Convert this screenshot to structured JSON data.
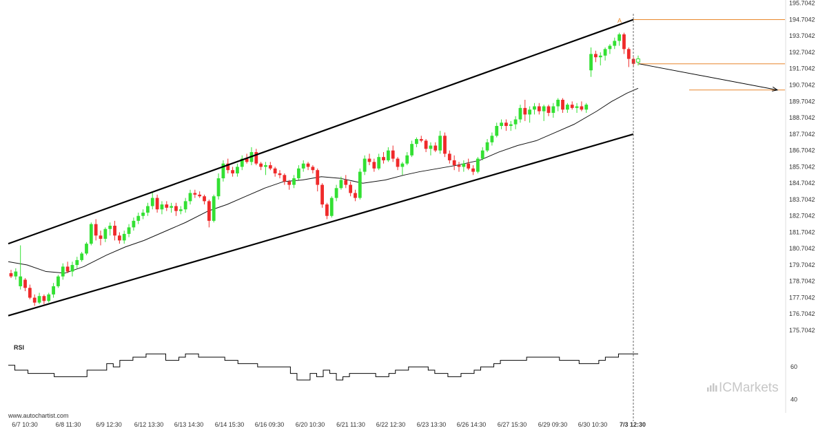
{
  "chart_data": {
    "type": "candlestick",
    "price_axis": {
      "ylim": [
        175.2,
        195.9
      ],
      "ticks": [
        "195.7042",
        "194.7042",
        "193.7042",
        "192.7042",
        "191.7042",
        "190.7042",
        "189.7042",
        "188.7042",
        "187.7042",
        "186.7042",
        "185.7042",
        "184.7042",
        "183.7042",
        "182.7042",
        "181.7042",
        "180.7042",
        "179.7042",
        "178.7042",
        "177.7042",
        "176.7042",
        "175.7042"
      ]
    },
    "x_ticks": [
      "6/7 10:30",
      "6/8 11:30",
      "6/9 12:30",
      "6/12 13:30",
      "6/13 14:30",
      "6/14 15:30",
      "6/16 09:30",
      "6/20 10:30",
      "6/21 11:30",
      "6/22 12:30",
      "6/23 13:30",
      "6/26 14:30",
      "6/27 15:30",
      "6/29 09:30",
      "6/30 10:30",
      "7/3 12:30"
    ],
    "x_tick_bold_last": true,
    "candles": [
      [
        179.2,
        179.4,
        178.9,
        179.0
      ],
      [
        179.0,
        179.5,
        178.8,
        179.3
      ],
      [
        178.4,
        180.9,
        178.2,
        179.0
      ],
      [
        178.8,
        178.9,
        178.1,
        178.3
      ],
      [
        178.3,
        178.5,
        177.6,
        177.7
      ],
      [
        177.7,
        177.9,
        177.2,
        177.4
      ],
      [
        177.4,
        178.0,
        177.3,
        177.8
      ],
      [
        177.8,
        177.9,
        177.3,
        177.5
      ],
      [
        177.5,
        178.0,
        177.4,
        177.9
      ],
      [
        177.9,
        178.6,
        177.7,
        178.4
      ],
      [
        178.4,
        179.1,
        178.3,
        179.0
      ],
      [
        179.0,
        179.8,
        178.8,
        179.6
      ],
      [
        179.6,
        179.9,
        179.2,
        179.3
      ],
      [
        179.3,
        179.9,
        179.0,
        179.7
      ],
      [
        179.7,
        180.2,
        179.5,
        180.0
      ],
      [
        180.0,
        180.5,
        179.9,
        180.4
      ],
      [
        180.4,
        181.1,
        180.3,
        181.0
      ],
      [
        181.0,
        182.3,
        180.9,
        182.2
      ],
      [
        182.2,
        182.5,
        181.2,
        181.5
      ],
      [
        181.5,
        181.8,
        180.9,
        181.3
      ],
      [
        181.3,
        182.0,
        181.1,
        181.9
      ],
      [
        181.9,
        182.3,
        181.5,
        182.1
      ],
      [
        182.1,
        182.4,
        181.2,
        181.5
      ],
      [
        181.5,
        181.7,
        181.0,
        181.2
      ],
      [
        181.2,
        181.8,
        181.0,
        181.6
      ],
      [
        181.6,
        182.2,
        181.4,
        182.0
      ],
      [
        182.0,
        182.6,
        181.8,
        182.4
      ],
      [
        182.4,
        182.9,
        182.2,
        182.7
      ],
      [
        182.7,
        183.1,
        182.5,
        182.9
      ],
      [
        182.9,
        183.5,
        182.7,
        183.3
      ],
      [
        183.3,
        184.2,
        183.1,
        183.8
      ],
      [
        183.8,
        184.0,
        182.9,
        183.1
      ],
      [
        183.1,
        183.6,
        182.8,
        183.4
      ],
      [
        183.4,
        183.6,
        183.0,
        183.2
      ],
      [
        183.2,
        183.5,
        182.9,
        183.3
      ],
      [
        183.3,
        183.5,
        182.7,
        183.0
      ],
      [
        183.0,
        183.3,
        182.8,
        183.1
      ],
      [
        183.1,
        183.8,
        182.9,
        183.6
      ],
      [
        183.6,
        184.3,
        183.4,
        184.1
      ],
      [
        184.1,
        184.3,
        183.8,
        184.0
      ],
      [
        184.0,
        184.2,
        183.8,
        183.9
      ],
      [
        183.9,
        184.0,
        183.4,
        183.6
      ],
      [
        183.6,
        183.7,
        182.0,
        182.4
      ],
      [
        182.4,
        184.0,
        182.3,
        183.9
      ],
      [
        183.9,
        185.3,
        183.7,
        185.0
      ],
      [
        185.0,
        186.1,
        184.8,
        185.9
      ],
      [
        185.9,
        186.2,
        185.3,
        185.5
      ],
      [
        185.5,
        185.7,
        185.1,
        185.3
      ],
      [
        185.3,
        185.9,
        185.1,
        185.7
      ],
      [
        185.7,
        186.4,
        185.5,
        186.2
      ],
      [
        186.2,
        186.5,
        185.9,
        186.0
      ],
      [
        186.0,
        186.9,
        185.8,
        186.6
      ],
      [
        186.6,
        186.8,
        185.8,
        185.9
      ],
      [
        185.9,
        186.0,
        185.5,
        185.7
      ],
      [
        185.7,
        186.0,
        185.2,
        185.8
      ],
      [
        185.8,
        186.0,
        185.5,
        185.6
      ],
      [
        185.6,
        185.7,
        185.1,
        185.3
      ],
      [
        185.3,
        185.5,
        185.0,
        185.2
      ],
      [
        185.2,
        185.3,
        184.6,
        184.8
      ],
      [
        184.8,
        184.9,
        184.3,
        184.6
      ],
      [
        184.6,
        185.2,
        184.4,
        185.0
      ],
      [
        185.0,
        185.8,
        184.9,
        185.6
      ],
      [
        185.6,
        186.1,
        185.4,
        185.9
      ],
      [
        185.9,
        186.0,
        185.5,
        185.7
      ],
      [
        185.7,
        185.8,
        185.3,
        185.5
      ],
      [
        185.5,
        185.6,
        184.2,
        184.6
      ],
      [
        184.6,
        184.7,
        183.2,
        183.4
      ],
      [
        183.4,
        183.5,
        182.5,
        182.7
      ],
      [
        182.7,
        183.9,
        182.6,
        183.8
      ],
      [
        183.8,
        184.6,
        183.6,
        184.4
      ],
      [
        184.4,
        185.1,
        184.3,
        184.9
      ],
      [
        184.9,
        185.2,
        184.4,
        184.6
      ],
      [
        184.6,
        184.8,
        183.9,
        184.1
      ],
      [
        184.1,
        184.3,
        183.6,
        183.8
      ],
      [
        183.8,
        185.6,
        183.7,
        185.4
      ],
      [
        185.4,
        186.4,
        185.2,
        186.2
      ],
      [
        186.2,
        186.5,
        185.8,
        186.0
      ],
      [
        186.0,
        186.2,
        185.4,
        185.6
      ],
      [
        185.6,
        186.5,
        185.5,
        186.3
      ],
      [
        186.3,
        186.6,
        185.9,
        186.1
      ],
      [
        186.1,
        186.9,
        186.0,
        186.7
      ],
      [
        186.7,
        187.0,
        186.0,
        186.2
      ],
      [
        186.2,
        186.3,
        185.5,
        185.7
      ],
      [
        185.7,
        186.0,
        185.2,
        185.9
      ],
      [
        185.9,
        186.6,
        185.8,
        186.4
      ],
      [
        186.4,
        187.3,
        186.3,
        187.1
      ],
      [
        187.1,
        187.5,
        186.9,
        187.4
      ],
      [
        187.4,
        187.6,
        187.2,
        187.3
      ],
      [
        187.3,
        187.4,
        186.6,
        186.8
      ],
      [
        186.8,
        187.2,
        186.4,
        187.0
      ],
      [
        187.0,
        187.2,
        186.6,
        186.7
      ],
      [
        186.7,
        187.9,
        186.5,
        187.6
      ],
      [
        187.6,
        187.8,
        186.3,
        186.5
      ],
      [
        186.5,
        186.7,
        185.9,
        186.1
      ],
      [
        186.1,
        186.4,
        185.5,
        185.8
      ],
      [
        185.8,
        186.0,
        185.4,
        185.7
      ],
      [
        185.7,
        186.1,
        185.4,
        185.9
      ],
      [
        185.9,
        186.2,
        185.5,
        185.6
      ],
      [
        185.6,
        185.8,
        185.2,
        185.4
      ],
      [
        185.4,
        186.3,
        185.3,
        186.2
      ],
      [
        186.2,
        186.9,
        186.1,
        186.7
      ],
      [
        186.7,
        187.4,
        186.6,
        187.2
      ],
      [
        187.2,
        187.8,
        187.0,
        187.6
      ],
      [
        187.6,
        188.4,
        187.5,
        188.2
      ],
      [
        188.2,
        188.6,
        188.0,
        188.4
      ],
      [
        188.4,
        188.6,
        187.9,
        188.2
      ],
      [
        188.2,
        188.5,
        187.9,
        188.3
      ],
      [
        188.3,
        188.8,
        188.0,
        188.6
      ],
      [
        188.6,
        189.5,
        188.4,
        189.3
      ],
      [
        189.3,
        189.8,
        188.5,
        188.9
      ],
      [
        188.9,
        189.4,
        188.4,
        189.2
      ],
      [
        189.2,
        189.6,
        188.9,
        189.4
      ],
      [
        189.4,
        189.6,
        188.9,
        189.1
      ],
      [
        189.1,
        189.5,
        188.5,
        189.4
      ],
      [
        189.4,
        189.5,
        188.8,
        189.0
      ],
      [
        189.0,
        189.6,
        188.7,
        189.4
      ],
      [
        189.4,
        189.9,
        189.1,
        189.8
      ],
      [
        189.8,
        189.9,
        189.0,
        189.2
      ],
      [
        189.2,
        189.6,
        189.0,
        189.5
      ],
      [
        189.5,
        189.7,
        189.2,
        189.3
      ],
      [
        189.3,
        189.6,
        189.0,
        189.4
      ],
      [
        189.4,
        189.7,
        189.1,
        189.2
      ],
      [
        189.2,
        189.6,
        189.0,
        189.5
      ],
      [
        191.6,
        193.0,
        191.2,
        192.6
      ],
      [
        192.6,
        192.8,
        192.1,
        192.4
      ],
      [
        192.4,
        192.7,
        191.9,
        192.5
      ],
      [
        192.5,
        193.0,
        192.2,
        192.9
      ],
      [
        192.9,
        193.2,
        192.6,
        193.1
      ],
      [
        193.1,
        193.6,
        192.9,
        193.4
      ],
      [
        193.4,
        193.9,
        193.1,
        193.8
      ],
      [
        193.8,
        193.9,
        192.6,
        192.9
      ],
      [
        192.9,
        193.0,
        191.8,
        192.3
      ],
      [
        192.3,
        192.4,
        191.8,
        192.0
      ],
      [
        192.1,
        192.5,
        191.9,
        192.3
      ]
    ],
    "last_candle_hollow": true,
    "moving_average": [
      [
        0,
        179.9
      ],
      [
        10,
        179.7
      ],
      [
        20,
        179.3
      ],
      [
        30,
        179.2
      ],
      [
        40,
        179.6
      ],
      [
        52,
        180.3
      ],
      [
        62,
        180.8
      ],
      [
        72,
        181.2
      ],
      [
        84,
        181.8
      ],
      [
        94,
        182.3
      ],
      [
        106,
        183.0
      ],
      [
        116,
        183.4
      ],
      [
        126,
        183.9
      ],
      [
        136,
        184.4
      ],
      [
        146,
        184.8
      ],
      [
        156,
        184.9
      ],
      [
        166,
        185.1
      ],
      [
        176,
        185.0
      ],
      [
        188,
        184.7
      ],
      [
        200,
        184.9
      ],
      [
        210,
        185.2
      ],
      [
        218,
        185.4
      ],
      [
        228,
        185.6
      ],
      [
        238,
        185.8
      ],
      [
        250,
        186.1
      ],
      [
        260,
        186.6
      ],
      [
        270,
        187.0
      ],
      [
        280,
        187.3
      ],
      [
        290,
        187.8
      ],
      [
        300,
        188.3
      ],
      [
        312,
        189.1
      ],
      [
        320,
        189.7
      ],
      [
        328,
        190.2
      ],
      [
        334,
        190.5
      ]
    ],
    "ma_x_scale": 0.3934,
    "channel": {
      "upper": [
        [
          0,
          181.0
        ],
        [
          1,
          194.7
        ]
      ],
      "lower": [
        [
          0,
          176.6
        ],
        [
          1,
          187.7
        ]
      ]
    },
    "pattern_point_label": "A",
    "horizontal_levels": [
      194.7,
      192.0,
      190.4
    ],
    "projection": {
      "from": 192.0,
      "to": 190.4
    },
    "rsi": {
      "title": "RSI",
      "ticks": [
        "60",
        "40"
      ],
      "ylim": [
        36,
        74
      ],
      "values": [
        61,
        58,
        58,
        56,
        56,
        56,
        56,
        54,
        54,
        54,
        54,
        54,
        58,
        58,
        58,
        62,
        60,
        64,
        64,
        66,
        66,
        68,
        68,
        68,
        64,
        64,
        66,
        68,
        68,
        66,
        66,
        66,
        66,
        64,
        64,
        62,
        62,
        62,
        60,
        60,
        60,
        60,
        60,
        56,
        52,
        52,
        56,
        54,
        58,
        56,
        52,
        54,
        56,
        56,
        56,
        56,
        54,
        54,
        56,
        58,
        58,
        60,
        60,
        60,
        58,
        56,
        56,
        54,
        54,
        56,
        56,
        58,
        60,
        60,
        62,
        64,
        64,
        64,
        64,
        66,
        66,
        66,
        66,
        66,
        64,
        64,
        64,
        62,
        62,
        62,
        64,
        66,
        66,
        68,
        68,
        68,
        68
      ]
    },
    "watermark": "www.autochartist.com",
    "brand": "ICMarkets",
    "colors": {
      "up": "#33e033",
      "down": "#ef2a2a",
      "channel": "#000000",
      "ma": "#111111",
      "level": "#e8862a",
      "projection": "#000000",
      "rsi": "#000000",
      "brand": "#c7c7c7"
    }
  }
}
